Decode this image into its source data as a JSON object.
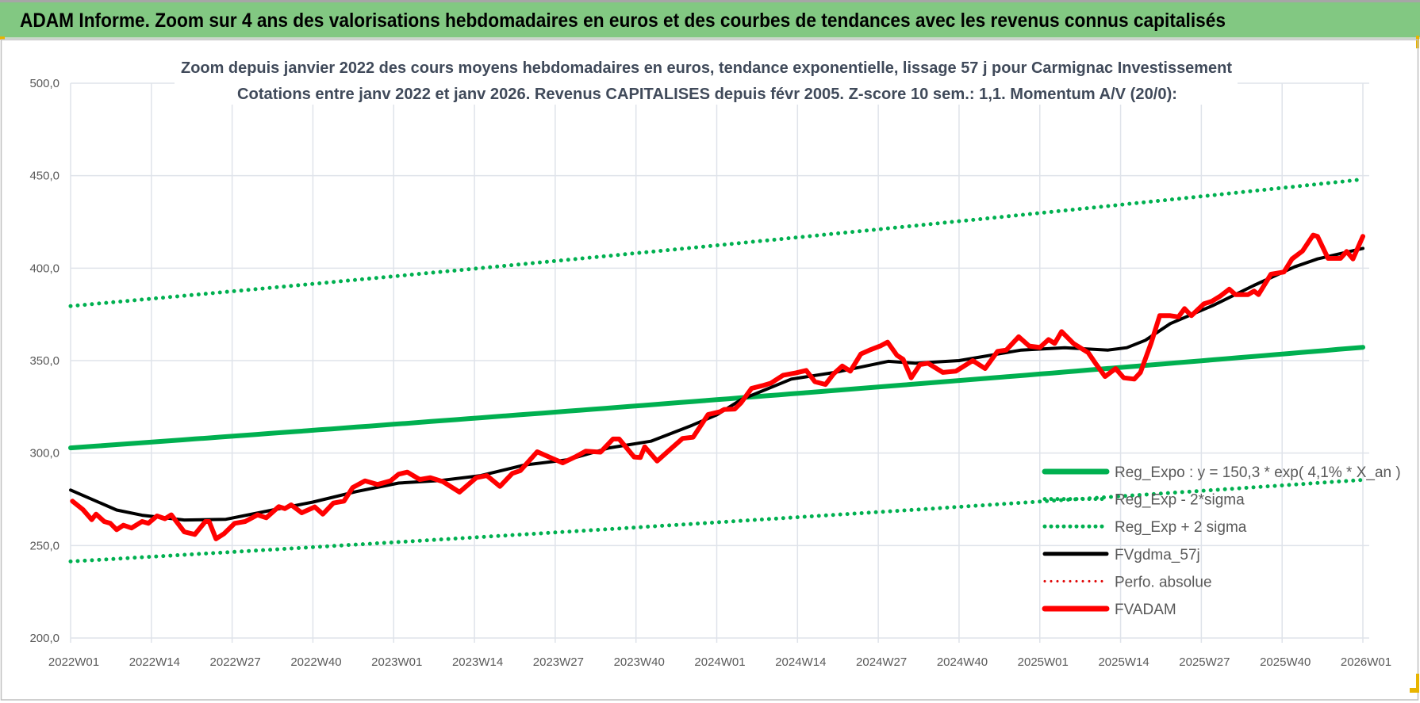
{
  "banner": {
    "title": "ADAM Informe. Zoom sur 4 ans des valorisations hebdomadaires en euros et des courbes de tendances avec les revenus connus capitalisés",
    "color": "#82c882"
  },
  "chart_data": {
    "type": "line",
    "title": "Zoom depuis janvier 2022 des cours moyens hebdomadaires en euros, tendance exponentielle, lissage 57 j pour Carmignac Investissement",
    "subtitle": "Cotations entre janv 2022 et janv 2026. Revenus CAPITALISES depuis févr 2005. Z-score 10 sem.: 1,1. Momentum A/V (20/0):",
    "xlabel": "",
    "ylabel": "",
    "x_unit": "weeks since 2022W01",
    "xlim": [
      0,
      208
    ],
    "ylim": [
      200,
      500
    ],
    "grid": true,
    "legend_position": "bottom-right",
    "y_ticks": [
      {
        "value": 200,
        "label": "200,0"
      },
      {
        "value": 250,
        "label": "250,0"
      },
      {
        "value": 300,
        "label": "300,0"
      },
      {
        "value": 350,
        "label": "350,0"
      },
      {
        "value": 400,
        "label": "400,0"
      },
      {
        "value": 450,
        "label": "450,0"
      },
      {
        "value": 500,
        "label": "500,0"
      }
    ],
    "x_ticks": [
      {
        "value": 0,
        "label": "2022W01"
      },
      {
        "value": 13,
        "label": "2022W14"
      },
      {
        "value": 26,
        "label": "2022W27"
      },
      {
        "value": 39,
        "label": "2022W40"
      },
      {
        "value": 52,
        "label": "2023W01"
      },
      {
        "value": 65,
        "label": "2023W14"
      },
      {
        "value": 78,
        "label": "2023W27"
      },
      {
        "value": 91,
        "label": "2023W40"
      },
      {
        "value": 104,
        "label": "2024W01"
      },
      {
        "value": 117,
        "label": "2024W14"
      },
      {
        "value": 130,
        "label": "2024W27"
      },
      {
        "value": 143,
        "label": "2024W40"
      },
      {
        "value": 156,
        "label": "2025W01"
      },
      {
        "value": 169,
        "label": "2025W14"
      },
      {
        "value": 182,
        "label": "2025W27"
      },
      {
        "value": 195,
        "label": "2025W40"
      },
      {
        "value": 208,
        "label": "2026W01"
      }
    ],
    "series": [
      {
        "name": "Reg_Expo : y = 150,3 * exp( 4,1% *  X_an )",
        "color": "#00b050",
        "style": "solid",
        "width": 6,
        "kind": "exp",
        "points": [
          [
            0,
            302.8
          ],
          [
            208,
            357.2
          ]
        ]
      },
      {
        "name": "Reg_Exp - 2*sigma",
        "color": "#00b050",
        "style": "dotted",
        "width": 5,
        "kind": "exp",
        "points": [
          [
            0,
            241.4
          ],
          [
            208,
            285.5
          ]
        ]
      },
      {
        "name": "Reg_Exp + 2 sigma",
        "color": "#00b050",
        "style": "dotted",
        "width": 5,
        "kind": "exp",
        "points": [
          [
            0,
            379.5
          ],
          [
            208,
            448.0
          ]
        ]
      },
      {
        "name": "FVgdma_57j",
        "color": "#000000",
        "style": "solid",
        "width": 4,
        "kind": "line",
        "points": [
          [
            0,
            280
          ],
          [
            7.4,
            269.2
          ],
          [
            11.5,
            266.4
          ],
          [
            18.3,
            263.8
          ],
          [
            25,
            264.2
          ],
          [
            32.5,
            269.2
          ],
          [
            39,
            273.5
          ],
          [
            46,
            279.2
          ],
          [
            52.8,
            283.8
          ],
          [
            59.6,
            285.2
          ],
          [
            66,
            287.8
          ],
          [
            73,
            293.5
          ],
          [
            80,
            296.4
          ],
          [
            86.7,
            302.8
          ],
          [
            93.4,
            306.4
          ],
          [
            100,
            315
          ],
          [
            104,
            320.7
          ],
          [
            108,
            329
          ],
          [
            116,
            340
          ],
          [
            123,
            343.6
          ],
          [
            131.6,
            349.6
          ],
          [
            136,
            348.6
          ],
          [
            143,
            350
          ],
          [
            150,
            354
          ],
          [
            153,
            355.7
          ],
          [
            160,
            357
          ],
          [
            167,
            355.7
          ],
          [
            170,
            357
          ],
          [
            173,
            361
          ],
          [
            177,
            370
          ],
          [
            184,
            380
          ],
          [
            190.5,
            390.7
          ],
          [
            197,
            400.7
          ],
          [
            200.7,
            405
          ],
          [
            208,
            410.7
          ]
        ]
      },
      {
        "name": "Perfo. absolue",
        "color": "#e00000",
        "style": "dotted",
        "width": 3,
        "kind": "none",
        "points": []
      },
      {
        "name": "FVADAM",
        "color": "#ff0000",
        "style": "solid",
        "width": 6,
        "kind": "line",
        "points": [
          [
            0.3,
            274
          ],
          [
            2,
            269.4
          ],
          [
            3.4,
            264
          ],
          [
            4.1,
            267
          ],
          [
            5.4,
            263
          ],
          [
            6.4,
            262
          ],
          [
            7.4,
            258.6
          ],
          [
            8.5,
            261
          ],
          [
            9.8,
            259.5
          ],
          [
            11.5,
            263
          ],
          [
            12.5,
            262
          ],
          [
            13.9,
            266
          ],
          [
            15.2,
            264.5
          ],
          [
            16.2,
            266.6
          ],
          [
            18.3,
            257.4
          ],
          [
            20,
            256
          ],
          [
            21.7,
            263
          ],
          [
            22.3,
            263
          ],
          [
            23.4,
            253.6
          ],
          [
            24.7,
            256.4
          ],
          [
            26.4,
            262
          ],
          [
            28.1,
            263
          ],
          [
            30.1,
            266.6
          ],
          [
            31.5,
            265
          ],
          [
            33.5,
            271
          ],
          [
            34.5,
            270
          ],
          [
            35.5,
            272
          ],
          [
            37.2,
            267.7
          ],
          [
            39.3,
            270.9
          ],
          [
            40.6,
            267
          ],
          [
            42.3,
            273
          ],
          [
            44,
            274
          ],
          [
            45.4,
            281.4
          ],
          [
            47.4,
            285
          ],
          [
            49.4,
            283
          ],
          [
            51.5,
            285
          ],
          [
            52.8,
            288.6
          ],
          [
            54.2,
            289.7
          ],
          [
            56.2,
            285.7
          ],
          [
            57.9,
            286.7
          ],
          [
            59.9,
            284.6
          ],
          [
            62.6,
            278.9
          ],
          [
            65.3,
            286.7
          ],
          [
            67,
            287.8
          ],
          [
            69.1,
            282
          ],
          [
            71.1,
            289
          ],
          [
            72.4,
            290.5
          ],
          [
            75.1,
            300.7
          ],
          [
            77.2,
            297.6
          ],
          [
            79.2,
            294.7
          ],
          [
            81.2,
            297.9
          ],
          [
            82.9,
            301
          ],
          [
            85.3,
            300.5
          ],
          [
            87.3,
            307.6
          ],
          [
            88.3,
            307.6
          ],
          [
            90.7,
            297.9
          ],
          [
            91.7,
            297.6
          ],
          [
            92.4,
            303.4
          ],
          [
            94.4,
            295.7
          ],
          [
            96.5,
            302
          ],
          [
            98.5,
            307.9
          ],
          [
            100.2,
            308.6
          ],
          [
            102.6,
            320.8
          ],
          [
            104.5,
            322.3
          ],
          [
            105.2,
            323.6
          ],
          [
            106.9,
            323.8
          ],
          [
            107.9,
            327.1
          ],
          [
            109.6,
            335
          ],
          [
            111.3,
            336.4
          ],
          [
            112.7,
            337.8
          ],
          [
            114.7,
            342.1
          ],
          [
            116.7,
            343.3
          ],
          [
            118.4,
            344.7
          ],
          [
            119.8,
            338.6
          ],
          [
            121.5,
            337.1
          ],
          [
            122.8,
            342.8
          ],
          [
            124.2,
            347.1
          ],
          [
            125.5,
            344.3
          ],
          [
            127.2,
            353.6
          ],
          [
            128.6,
            355.7
          ],
          [
            130.3,
            357.9
          ],
          [
            131.5,
            360
          ],
          [
            133,
            352.9
          ],
          [
            134,
            350.7
          ],
          [
            135.3,
            340.7
          ],
          [
            136.7,
            347.8
          ],
          [
            138,
            348.6
          ],
          [
            140.4,
            343.6
          ],
          [
            142.5,
            344.3
          ],
          [
            145.2,
            350
          ],
          [
            147.2,
            345.7
          ],
          [
            149.2,
            355
          ],
          [
            150.6,
            355.7
          ],
          [
            152.6,
            362.9
          ],
          [
            154.3,
            357.9
          ],
          [
            156,
            357.1
          ],
          [
            157.4,
            361.4
          ],
          [
            158.4,
            359.3
          ],
          [
            159.5,
            365.7
          ],
          [
            161.4,
            359.3
          ],
          [
            163.8,
            354.3
          ],
          [
            165.1,
            347.9
          ],
          [
            166.5,
            341.4
          ],
          [
            168.2,
            345.7
          ],
          [
            169.5,
            340.7
          ],
          [
            171.2,
            340
          ],
          [
            172.2,
            343.6
          ],
          [
            173.9,
            359.3
          ],
          [
            175.3,
            374.3
          ],
          [
            177,
            374.3
          ],
          [
            178.3,
            373.6
          ],
          [
            179.3,
            378.1
          ],
          [
            180.4,
            374.3
          ],
          [
            182.4,
            380.7
          ],
          [
            183.7,
            382.1
          ],
          [
            185.1,
            385
          ],
          [
            186.5,
            388.6
          ],
          [
            187.5,
            385.7
          ],
          [
            189.5,
            385.7
          ],
          [
            190.5,
            387.6
          ],
          [
            191.2,
            385.7
          ],
          [
            193.2,
            396.7
          ],
          [
            195.3,
            397.9
          ],
          [
            196.6,
            405
          ],
          [
            198.3,
            409.3
          ],
          [
            200,
            417.9
          ],
          [
            200.7,
            417.2
          ],
          [
            202.4,
            405.3
          ],
          [
            204.4,
            405.3
          ],
          [
            205.4,
            409
          ],
          [
            206.4,
            405
          ],
          [
            208,
            417.2
          ]
        ]
      }
    ]
  }
}
